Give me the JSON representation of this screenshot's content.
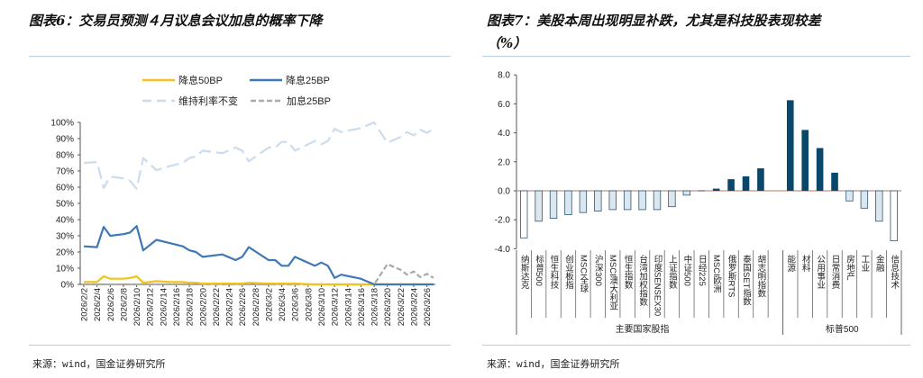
{
  "left": {
    "title": "图表6：交易员预测４月议息会议加息的概率下降",
    "source": "来源：wind，国金证券研究所"
  },
  "right": {
    "title_line1": "图表7：美股本周出现明显补跌，尤其是科技股表现较差",
    "title_line2": "（%）",
    "source": "来源：wind，国金证券研究所"
  },
  "chart_data": [
    {
      "type": "line",
      "x": [
        "2026/2/2",
        "2026/2/4",
        "2026/2/5",
        "2026/2/6",
        "2026/2/8",
        "2026/2/9",
        "2026/2/10",
        "2026/2/11",
        "2026/2/13",
        "2026/2/15",
        "2026/2/17",
        "2026/2/18",
        "2026/2/19",
        "2026/2/20",
        "2026/2/23",
        "2026/2/25",
        "2026/2/26",
        "2026/2/27",
        "2026/3/2",
        "2026/3/3",
        "2026/3/4",
        "2026/3/5",
        "2026/3/6",
        "2026/3/9",
        "2026/3/10",
        "2026/3/11",
        "2026/3/12",
        "2026/3/13",
        "2026/3/16",
        "2026/3/18",
        "2026/3/20",
        "2026/3/22",
        "2026/3/23",
        "2026/3/24",
        "2026/3/25",
        "2026/3/26",
        "2026/3/27"
      ],
      "series": [
        {
          "name": "降息50BP",
          "color": "#f2c21b",
          "style": "solid",
          "values": [
            1.5,
            1.5,
            5,
            3.5,
            3.5,
            4,
            5,
            1,
            2,
            1.5,
            1.5,
            1,
            1,
            0.5,
            0.5,
            0.5,
            0.5,
            1,
            0.5,
            0.5,
            0.5,
            0.5,
            0.5,
            0,
            0,
            0,
            0,
            0,
            0,
            0,
            0,
            0,
            0,
            0,
            0,
            0,
            0
          ]
        },
        {
          "name": "降息25BP",
          "color": "#3f78b5",
          "style": "solid",
          "values": [
            23.5,
            23,
            35.5,
            30,
            31,
            32,
            36,
            21,
            27.5,
            25.5,
            23.5,
            21,
            20,
            17,
            18.5,
            15,
            17,
            23,
            15,
            15,
            11.5,
            11.5,
            17,
            11.5,
            13.5,
            11.5,
            4,
            6,
            3.5,
            0,
            0,
            0,
            0,
            0,
            0,
            0,
            0
          ]
        },
        {
          "name": "维持利率不变",
          "color": "#cadcee",
          "style": "dashed",
          "values": [
            75,
            75.5,
            59.5,
            66.5,
            65.5,
            64,
            59,
            78,
            70.5,
            73,
            75,
            78,
            79,
            82.5,
            81,
            84.5,
            82.5,
            76,
            84.5,
            84.5,
            88,
            88,
            82.5,
            88.5,
            86.5,
            88.5,
            96,
            94,
            96.5,
            100,
            87.5,
            91,
            94,
            92,
            95.5,
            93.5,
            96
          ]
        },
        {
          "name": "加息25BP",
          "color": "#a9a9a9",
          "style": "dashed",
          "values": [
            0,
            0,
            0,
            0,
            0,
            0,
            0,
            0,
            0,
            0,
            0,
            0,
            0,
            0,
            0,
            0,
            0,
            0,
            0,
            0,
            0,
            0,
            0,
            0,
            0,
            0,
            0,
            0,
            0,
            0,
            12.5,
            9,
            6,
            8,
            4.5,
            6.5,
            4
          ]
        }
      ],
      "x_ticks": [
        "2026/2/2",
        "2026/2/4",
        "2026/2/6",
        "2026/2/8",
        "2026/2/10",
        "2026/2/12",
        "2026/2/14",
        "2026/2/16",
        "2026/2/18",
        "2026/2/20",
        "2026/2/22",
        "2026/2/24",
        "2026/2/26",
        "2026/2/28",
        "2026/3/2",
        "2026/3/4",
        "2026/3/6",
        "2026/3/8",
        "2026/3/10",
        "2026/3/12",
        "2026/3/14",
        "2026/3/16",
        "2026/3/18",
        "2026/3/20",
        "2026/3/22",
        "2026/3/24",
        "2026/3/26"
      ],
      "y_ticks": [
        "0%",
        "10%",
        "20%",
        "30%",
        "40%",
        "50%",
        "60%",
        "70%",
        "80%",
        "90%",
        "100%"
      ],
      "ylim": [
        0,
        100
      ],
      "legend": "top",
      "grid": false
    },
    {
      "type": "bar",
      "groups": [
        {
          "label": "主要国家股指",
          "categories": [
            "纳斯达克",
            "标普500",
            "恒生科技",
            "创业板指",
            "MSCI全球",
            "沪深300",
            "MSCI澳大利亚",
            "恒生指数",
            "台湾加权指数",
            "印度SENSEX30",
            "上证指数",
            "中证500",
            "日经225",
            "MSCI欧洲",
            "俄罗斯RTS",
            "泰国SET指数",
            "胡志明指数"
          ],
          "values": [
            -3.25,
            -2.1,
            -1.9,
            -1.65,
            -1.5,
            -1.4,
            -1.3,
            -1.3,
            -1.3,
            -1.3,
            -1.1,
            -0.3,
            0.03,
            0.15,
            0.8,
            1.0,
            1.55
          ]
        },
        {
          "label": "标普500",
          "categories": [
            "能源",
            "材料",
            "公用事业",
            "日常消费",
            "房地产",
            "工业",
            "金融",
            "信息技术"
          ],
          "values": [
            6.25,
            4.2,
            2.95,
            1.25,
            -0.7,
            -1.2,
            -2.1,
            -3.45
          ]
        }
      ],
      "y_ticks": [
        "-4.0",
        "-2.0",
        "0.0",
        "2.0",
        "4.0",
        "6.0",
        "8.0"
      ],
      "ylim": [
        -4,
        8
      ],
      "colors": {
        "positive": "#0b466b",
        "negative": "#dce6ee",
        "negative_extreme": "#ffffff",
        "outline": "#2f5873"
      },
      "grid": false
    }
  ]
}
